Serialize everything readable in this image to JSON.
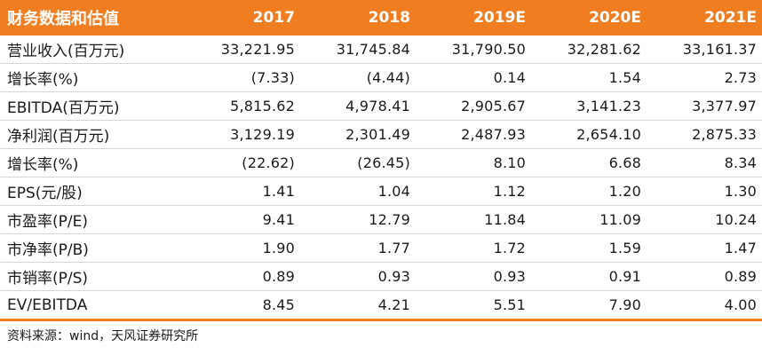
{
  "table": {
    "title": "财务数据和估值",
    "columns": [
      "2017",
      "2018",
      "2019E",
      "2020E",
      "2021E"
    ],
    "rows": [
      {
        "label": "营业收入(百万元)",
        "values": [
          "33,221.95",
          "31,745.84",
          "31,790.50",
          "32,281.62",
          "33,161.37"
        ]
      },
      {
        "label": "增长率(%)",
        "values": [
          "(7.33)",
          "(4.44)",
          "0.14",
          "1.54",
          "2.73"
        ]
      },
      {
        "label": "EBITDA(百万元)",
        "values": [
          "5,815.62",
          "4,978.41",
          "2,905.67",
          "3,141.23",
          "3,377.97"
        ]
      },
      {
        "label": "净利润(百万元)",
        "values": [
          "3,129.19",
          "2,301.49",
          "2,487.93",
          "2,654.10",
          "2,875.33"
        ]
      },
      {
        "label": "增长率(%)",
        "values": [
          "(22.62)",
          "(26.45)",
          "8.10",
          "6.68",
          "8.34"
        ]
      },
      {
        "label": "EPS(元/股)",
        "values": [
          "1.41",
          "1.04",
          "1.12",
          "1.20",
          "1.30"
        ]
      },
      {
        "label": "市盈率(P/E)",
        "values": [
          "9.41",
          "12.79",
          "11.84",
          "11.09",
          "10.24"
        ]
      },
      {
        "label": "市净率(P/B)",
        "values": [
          "1.90",
          "1.77",
          "1.72",
          "1.59",
          "1.47"
        ]
      },
      {
        "label": "市销率(P/S)",
        "values": [
          "0.89",
          "0.93",
          "0.93",
          "0.91",
          "0.89"
        ]
      },
      {
        "label": "EV/EBITDA",
        "values": [
          "8.45",
          "4.21",
          "5.51",
          "7.90",
          "4.00"
        ]
      }
    ]
  },
  "source": "资料来源：wind，天风证券研究所",
  "colors": {
    "header_background": "#f07d1f",
    "header_text": "#ffffff",
    "body_text": "#1a1a1a",
    "row_divider": "#d6d6d6"
  }
}
